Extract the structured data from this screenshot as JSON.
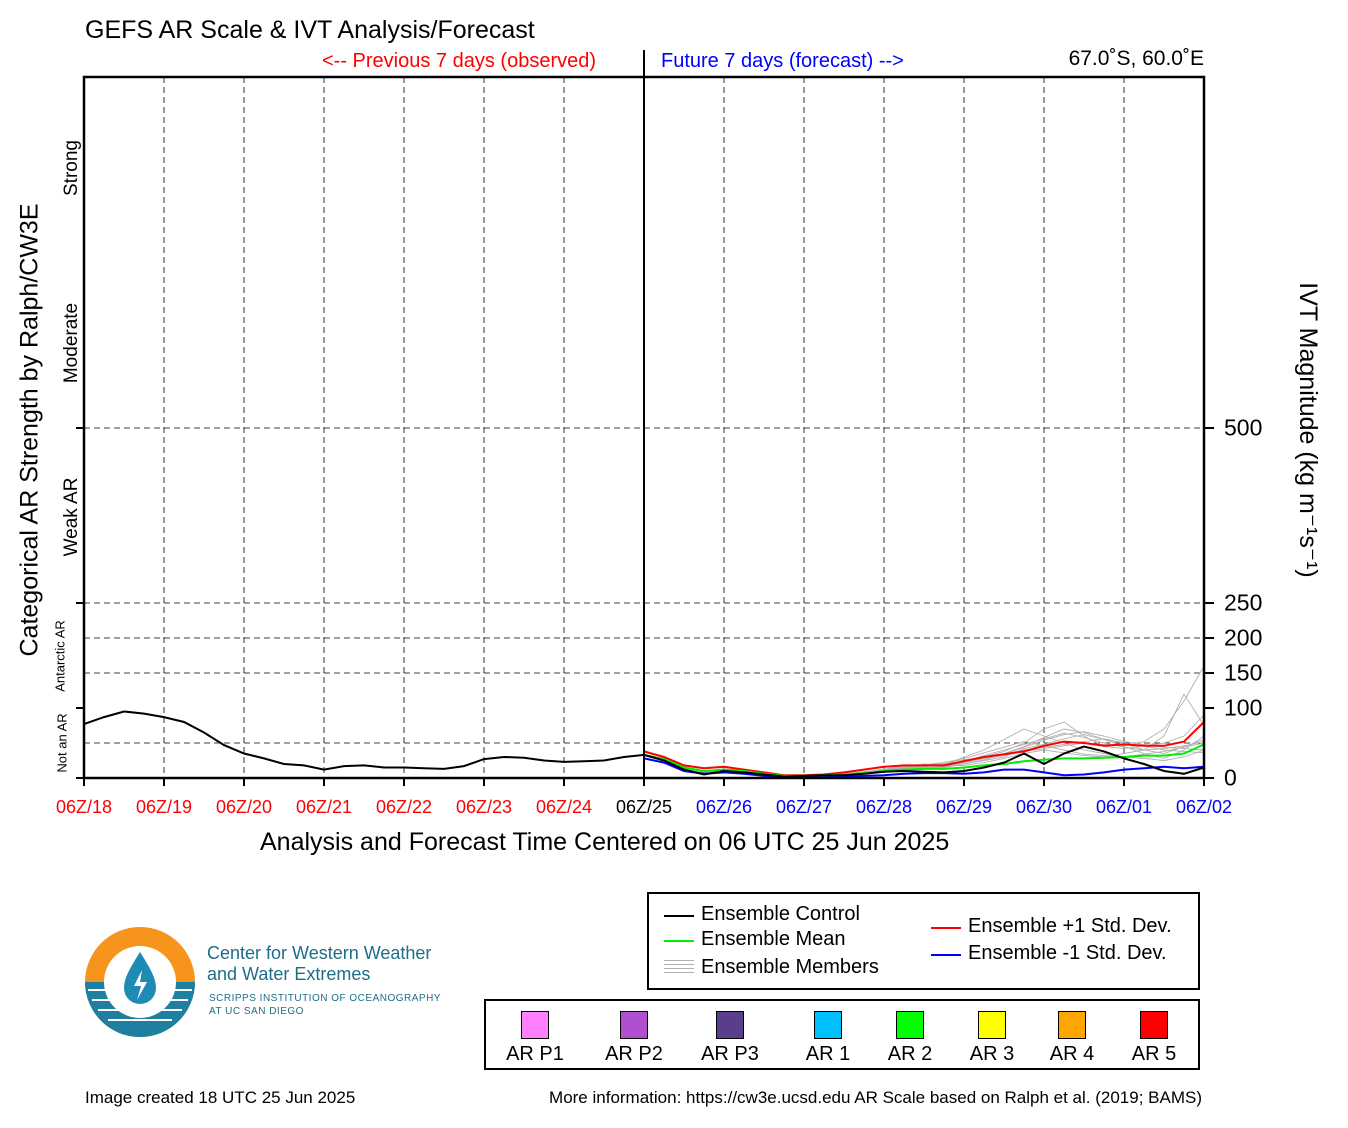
{
  "title": "GEFS AR Scale & IVT Analysis/Forecast",
  "header": {
    "previous_label": "<-- Previous 7 days (observed)",
    "future_label": "Future 7 days (forecast) -->",
    "location": "67.0˚S, 60.0˚E"
  },
  "axes": {
    "xlabel": "Analysis and Forecast Time Centered on 06 UTC 25 Jun 2025",
    "ylabel_left": "Categorical AR Strength by Ralph/CW3E",
    "ylabel_right": "IVT Magnitude (kg m⁻¹s⁻¹)",
    "categories": {
      "strong": "Strong",
      "moderate": "Moderate",
      "weak": "Weak AR",
      "antarctic": "Antarctic AR",
      "not_ar": "Not an AR"
    },
    "colors": {
      "observed": "#ff0000",
      "analysis": "#000000",
      "forecast": "#0000ff"
    }
  },
  "chart_data": {
    "type": "line",
    "x_ticks": [
      "06Z/18",
      "06Z/19",
      "06Z/20",
      "06Z/21",
      "06Z/22",
      "06Z/23",
      "06Z/24",
      "06Z/25",
      "06Z/26",
      "06Z/27",
      "06Z/28",
      "06Z/29",
      "06Z/30",
      "06Z/01",
      "06Z/02"
    ],
    "x_tick_kinds": [
      "observed",
      "observed",
      "observed",
      "observed",
      "observed",
      "observed",
      "observed",
      "analysis",
      "forecast",
      "forecast",
      "forecast",
      "forecast",
      "forecast",
      "forecast",
      "forecast"
    ],
    "x_range_days": [
      -7,
      7
    ],
    "y_ticks": [
      0,
      100,
      150,
      200,
      250,
      500
    ],
    "y_gridlines": [
      50,
      150,
      200,
      250,
      500
    ],
    "ylim": [
      0,
      1000
    ],
    "observed_x_days": [
      -7,
      -6.75,
      -6.5,
      -6.25,
      -6,
      -5.75,
      -5.5,
      -5.25,
      -5,
      -4.75,
      -4.5,
      -4.25,
      -4,
      -3.75,
      -3.5,
      -3.25,
      -3,
      -2.75,
      -2.5,
      -2.25,
      -2,
      -1.75,
      -1.5,
      -1.25,
      -1,
      -0.75,
      -0.5,
      -0.25,
      0
    ],
    "observed_ivt": [
      77,
      87,
      95,
      92,
      87,
      80,
      65,
      47,
      35,
      28,
      20,
      18,
      12,
      17,
      18,
      15,
      15,
      14,
      13,
      17,
      27,
      30,
      29,
      25,
      23,
      24,
      25,
      30,
      33
    ],
    "forecast_x_days": [
      0,
      0.25,
      0.5,
      0.75,
      1,
      1.25,
      1.5,
      1.75,
      2,
      2.25,
      2.5,
      2.75,
      3,
      3.25,
      3.5,
      3.75,
      4,
      4.25,
      4.5,
      4.75,
      5,
      5.25,
      5.5,
      5.75,
      6,
      6.25,
      6.5,
      6.75,
      7
    ],
    "series": [
      {
        "name": "Ensemble Control",
        "color": "#000000",
        "values": [
          33,
          25,
          12,
          5,
          10,
          8,
          5,
          2,
          3,
          4,
          4,
          6,
          9,
          10,
          9,
          8,
          10,
          15,
          22,
          35,
          20,
          35,
          45,
          38,
          28,
          20,
          10,
          6,
          15
        ]
      },
      {
        "name": "Ensemble Mean",
        "color": "#00ee00",
        "values": [
          33,
          27,
          15,
          10,
          12,
          10,
          6,
          3,
          3,
          4,
          5,
          7,
          10,
          12,
          13,
          13,
          15,
          18,
          20,
          24,
          26,
          28,
          28,
          29,
          30,
          32,
          32,
          35,
          48
        ]
      },
      {
        "name": "Ensemble +1 Std. Dev.",
        "color": "#ff0000",
        "values": [
          38,
          30,
          18,
          14,
          16,
          12,
          8,
          4,
          4,
          5,
          8,
          12,
          16,
          18,
          18,
          18,
          24,
          30,
          34,
          38,
          46,
          52,
          50,
          46,
          48,
          46,
          46,
          52,
          80
        ]
      },
      {
        "name": "Ensemble -1 Std. Dev.",
        "color": "#0000ff",
        "values": [
          28,
          22,
          10,
          6,
          8,
          6,
          3,
          2,
          2,
          3,
          2,
          3,
          4,
          6,
          7,
          7,
          6,
          8,
          12,
          12,
          8,
          4,
          5,
          8,
          12,
          14,
          16,
          14,
          16
        ]
      }
    ],
    "members_label": "Ensemble Members",
    "members_color": "#b0b0b0",
    "members": [
      [
        33,
        26,
        14,
        8,
        11,
        9,
        6,
        3,
        3,
        4,
        6,
        8,
        12,
        16,
        20,
        18,
        30,
        40,
        55,
        70,
        60,
        50,
        40,
        35,
        30,
        28,
        25,
        30,
        40
      ],
      [
        33,
        27,
        15,
        9,
        12,
        10,
        5,
        3,
        3,
        4,
        5,
        7,
        11,
        14,
        15,
        16,
        22,
        28,
        35,
        45,
        58,
        70,
        65,
        55,
        50,
        40,
        35,
        45,
        55
      ],
      [
        33,
        25,
        13,
        7,
        10,
        8,
        5,
        2,
        3,
        4,
        5,
        6,
        9,
        12,
        13,
        15,
        20,
        25,
        30,
        42,
        48,
        56,
        62,
        55,
        45,
        35,
        28,
        40,
        60
      ],
      [
        33,
        28,
        16,
        10,
        13,
        11,
        7,
        3,
        4,
        5,
        6,
        8,
        12,
        15,
        18,
        20,
        24,
        30,
        38,
        50,
        70,
        80,
        60,
        45,
        42,
        46,
        50,
        60,
        90
      ],
      [
        33,
        26,
        14,
        9,
        11,
        9,
        6,
        3,
        3,
        4,
        5,
        7,
        10,
        12,
        14,
        17,
        18,
        22,
        28,
        35,
        40,
        36,
        32,
        30,
        35,
        40,
        60,
        120,
        75
      ],
      [
        33,
        27,
        15,
        8,
        12,
        10,
        6,
        3,
        3,
        4,
        6,
        8,
        13,
        16,
        19,
        22,
        28,
        36,
        44,
        52,
        46,
        40,
        34,
        32,
        30,
        34,
        38,
        44,
        50
      ],
      [
        33,
        25,
        14,
        9,
        10,
        8,
        5,
        2,
        3,
        4,
        5,
        7,
        10,
        13,
        16,
        20,
        24,
        32,
        40,
        48,
        56,
        64,
        58,
        50,
        44,
        40,
        42,
        46,
        52
      ],
      [
        33,
        26,
        15,
        10,
        11,
        9,
        6,
        3,
        3,
        4,
        6,
        9,
        12,
        15,
        18,
        22,
        26,
        30,
        34,
        40,
        44,
        48,
        52,
        56,
        50,
        46,
        40,
        38,
        36
      ],
      [
        33,
        27,
        16,
        9,
        12,
        10,
        6,
        3,
        3,
        5,
        6,
        8,
        11,
        14,
        17,
        20,
        24,
        28,
        32,
        38,
        42,
        46,
        50,
        48,
        46,
        52,
        70,
        110,
        160
      ],
      [
        33,
        25,
        13,
        8,
        10,
        9,
        5,
        2,
        3,
        4,
        5,
        7,
        9,
        11,
        13,
        16,
        20,
        26,
        34,
        44,
        54,
        62,
        66,
        60,
        52,
        48,
        44,
        42,
        40
      ]
    ]
  },
  "legend": {
    "control": "Ensemble Control",
    "mean": "Ensemble Mean",
    "members": "Ensemble Members",
    "plus": "Ensemble +1 Std. Dev.",
    "minus": "Ensemble -1 Std. Dev."
  },
  "ar_scale": [
    {
      "label": "AR P1",
      "color": "#ff80ff"
    },
    {
      "label": "AR P2",
      "color": "#b050d0"
    },
    {
      "label": "AR P3",
      "color": "#5a3d8c"
    },
    {
      "label": "AR 1",
      "color": "#00bfff"
    },
    {
      "label": "AR 2",
      "color": "#00ff00"
    },
    {
      "label": "AR 3",
      "color": "#ffff00"
    },
    {
      "label": "AR 4",
      "color": "#ffa500"
    },
    {
      "label": "AR 5",
      "color": "#ff0000"
    }
  ],
  "org": {
    "name_line1": "Center for Western Weather",
    "name_line2": "and Water Extremes",
    "sub_line1": "SCRIPPS INSTITUTION OF OCEANOGRAPHY",
    "sub_line2": "AT UC SAN DIEGO",
    "colors": {
      "orange": "#f7941d",
      "teal": "#1f7fa0"
    }
  },
  "footer": {
    "created": "Image created 18 UTC 25 Jun 2025",
    "info": "More information: https://cw3e.ucsd.edu AR Scale based on Ralph et al. (2019; BAMS)"
  }
}
